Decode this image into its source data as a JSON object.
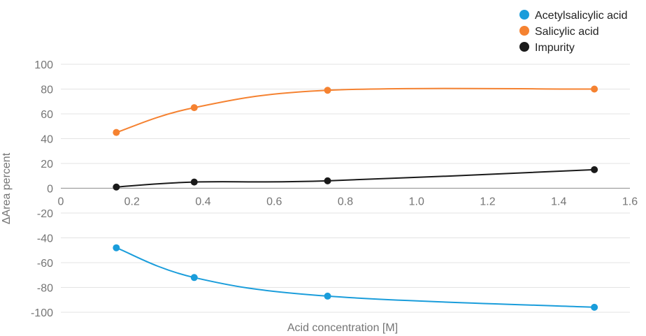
{
  "chart_data": {
    "type": "line",
    "title": "",
    "xlabel": "Acid concentration [M]",
    "ylabel": "ΔArea percent",
    "xlim": [
      0,
      1.6
    ],
    "ylim": [
      -100,
      100
    ],
    "x_ticks": [
      "0",
      "0.2",
      "0.4",
      "0.6",
      "0.8",
      "1.0",
      "1.2",
      "1.4",
      "1.6"
    ],
    "y_ticks": [
      "100",
      "80",
      "60",
      "40",
      "20",
      "0",
      "-20",
      "-40",
      "-60",
      "-80",
      "-100"
    ],
    "grid": "horizontal",
    "legend_position": "top-right",
    "series": [
      {
        "name": "Acetylsalicylic acid",
        "color": "#1a9ddb",
        "x": [
          0.156,
          0.375,
          0.75,
          1.5
        ],
        "y": [
          -48,
          -72,
          -87,
          -96
        ]
      },
      {
        "name": "Salicylic acid",
        "color": "#f58231",
        "x": [
          0.156,
          0.375,
          0.75,
          1.5
        ],
        "y": [
          45,
          65,
          79,
          80
        ]
      },
      {
        "name": "Impurity",
        "color": "#1a1a1a",
        "x": [
          0.156,
          0.375,
          0.75,
          1.5
        ],
        "y": [
          1,
          5,
          6,
          15
        ]
      }
    ]
  }
}
